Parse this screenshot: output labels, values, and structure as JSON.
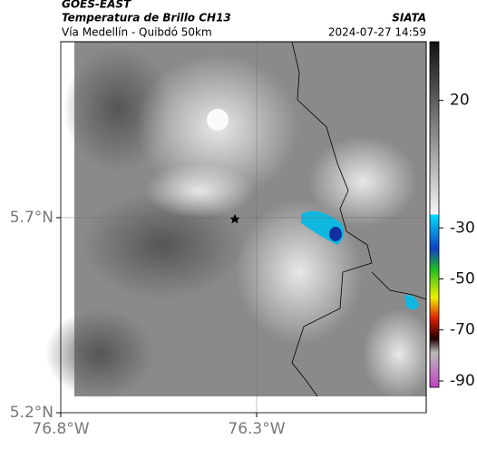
{
  "header": {
    "title": "GOES-EAST",
    "subtitle": "Temperatura de Brillo CH13",
    "source": "SIATA",
    "route": "Vía Medellín - Quibdó 50km",
    "datetime": "2024-07-27 14:59"
  },
  "map": {
    "xlim": [
      -76.8,
      -75.867
    ],
    "ylim": [
      5.2,
      6.151
    ],
    "xticks": [
      {
        "value": -76.8,
        "label": "76.8°W"
      },
      {
        "value": -76.3,
        "label": "76.3°W"
      }
    ],
    "yticks": [
      {
        "value": 5.2,
        "label": "5.2°N"
      },
      {
        "value": 5.7,
        "label": "5.7°N"
      }
    ],
    "grid": true
  },
  "colorbar": {
    "clim": [
      -92.5,
      43
    ],
    "ticks": [
      20,
      -30,
      -50,
      -70,
      -90
    ]
  }
}
